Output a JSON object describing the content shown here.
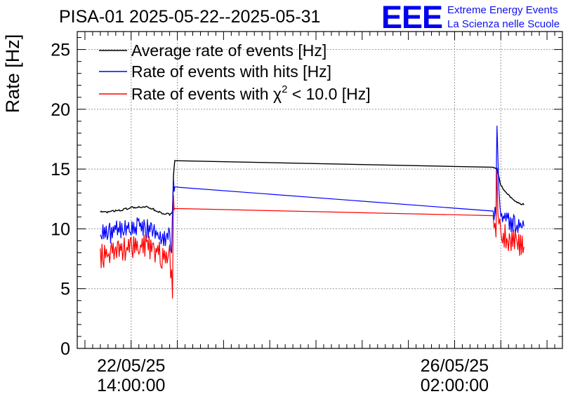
{
  "header": {
    "title": "PISA-01 2025-05-22--2025-05-31",
    "logo_mark": "EEE",
    "logo_line1": "Extreme Energy Events",
    "logo_line2": "La Scienza nelle Scuole"
  },
  "colors": {
    "average": "#000000",
    "hits": "#0000ff",
    "chi2": "#ff0000",
    "grid": "#999999",
    "logo": "#0000ee"
  },
  "chart_data": {
    "type": "line",
    "title": "PISA-01 2025-05-22--2025-05-31",
    "ylabel": "Rate [Hz]",
    "xlabel": "",
    "ylim": [
      0,
      26.5
    ],
    "yticks": [
      "0",
      "5",
      "10",
      "15",
      "20",
      "25"
    ],
    "xticks": [
      {
        "date": "22/05/25",
        "time": "14:00:00"
      },
      {
        "date": "26/05/25",
        "time": "02:00:00"
      }
    ],
    "grid": true,
    "legend_position": "top-left",
    "legend": {
      "average": "Average rate of events [Hz]",
      "hits": "Rate of events with hits [Hz]",
      "chi2_prefix": "Rate of events with χ",
      "chi2_sup": "2",
      "chi2_suffix": " < 10.0 [Hz]"
    },
    "series": [
      {
        "name": "Average rate of events [Hz]",
        "color": "#000000",
        "x": [
          "2025-05-22 06:00",
          "2025-05-22 08:00",
          "2025-05-22 10:00",
          "2025-05-22 12:00",
          "2025-05-22 14:00",
          "2025-05-22 16:00",
          "2025-05-22 18:00",
          "2025-05-22 20:00",
          "2025-05-22 22:00",
          "2025-05-23 00:00",
          "2025-05-23 00:45",
          "2025-05-23 01:00",
          "2025-05-23 01:20",
          "2025-05-26 12:00",
          "2025-05-26 13:00",
          "2025-05-26 14:00",
          "2025-05-26 16:00",
          "2025-05-26 18:00",
          "2025-05-26 20:00"
        ],
        "values": [
          11.4,
          11.4,
          11.5,
          11.6,
          11.8,
          11.8,
          11.9,
          11.6,
          11.3,
          11.2,
          11.5,
          14.5,
          15.7,
          15.1,
          15.0,
          13.6,
          12.8,
          12.3,
          12.0
        ]
      },
      {
        "name": "Rate of events with hits [Hz]",
        "color": "#0000ff",
        "x": [
          "2025-05-22 06:00",
          "2025-05-22 08:00",
          "2025-05-22 10:00",
          "2025-05-22 12:00",
          "2025-05-22 14:00",
          "2025-05-22 16:00",
          "2025-05-22 18:00",
          "2025-05-22 20:00",
          "2025-05-22 22:00",
          "2025-05-23 00:00",
          "2025-05-23 00:30",
          "2025-05-23 01:00",
          "2025-05-23 01:20",
          "2025-05-26 12:00",
          "2025-05-26 12:45",
          "2025-05-26 13:00",
          "2025-05-26 13:30",
          "2025-05-26 14:00",
          "2025-05-26 16:00",
          "2025-05-26 18:00",
          "2025-05-26 20:00"
        ],
        "values": [
          9.5,
          9.6,
          9.8,
          10.0,
          10.1,
          10.2,
          10.1,
          9.8,
          9.5,
          9.3,
          8.8,
          13.5,
          13.5,
          11.4,
          11.6,
          18.3,
          14.0,
          11.3,
          10.7,
          10.3,
          10.2
        ]
      },
      {
        "name": "Rate of events with χ2 < 10.0 [Hz]",
        "color": "#ff0000",
        "x": [
          "2025-05-22 06:00",
          "2025-05-22 08:00",
          "2025-05-22 10:00",
          "2025-05-22 12:00",
          "2025-05-22 14:00",
          "2025-05-22 16:00",
          "2025-05-22 18:00",
          "2025-05-22 20:00",
          "2025-05-22 22:00",
          "2025-05-23 00:00",
          "2025-05-23 00:45",
          "2025-05-23 01:00",
          "2025-05-23 01:20",
          "2025-05-26 12:00",
          "2025-05-26 12:45",
          "2025-05-26 13:00",
          "2025-05-26 13:30",
          "2025-05-26 14:00",
          "2025-05-26 16:00",
          "2025-05-26 18:00",
          "2025-05-26 20:00"
        ],
        "values": [
          7.8,
          7.9,
          8.1,
          8.3,
          8.5,
          8.6,
          8.5,
          8.2,
          7.8,
          7.6,
          4.8,
          12.0,
          11.7,
          10.1,
          10.2,
          14.0,
          10.5,
          9.6,
          9.1,
          8.8,
          8.5
        ]
      }
    ]
  }
}
